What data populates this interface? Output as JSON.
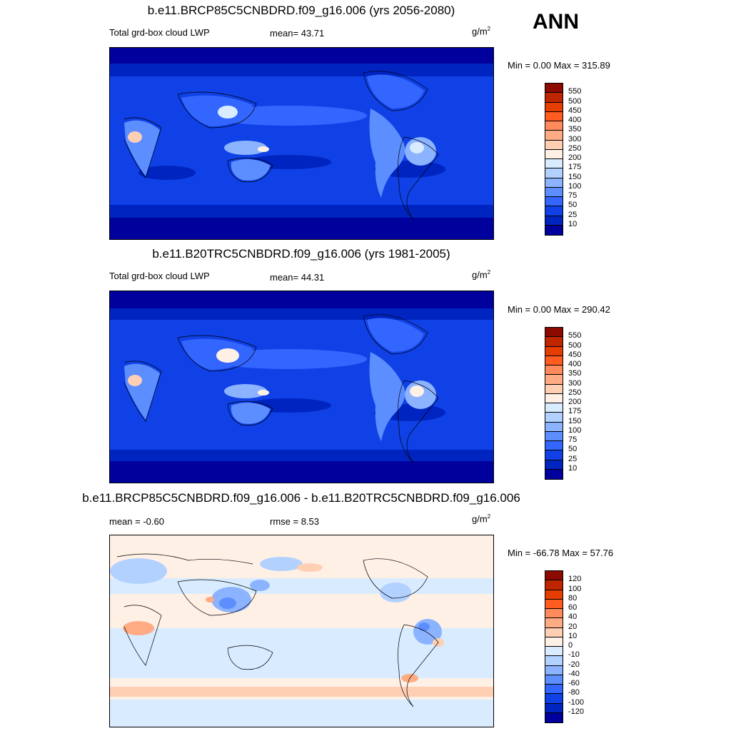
{
  "season": "ANN",
  "panels": [
    {
      "title": "b.e11.BRCP85C5CNBDRD.f09_g16.006 (yrs 2056-2080)",
      "left_label": "Total grd-box cloud LWP",
      "center_label": "mean=  43.71",
      "units_base": "g/m",
      "units_exp": "2",
      "minmax": "Min =   0.00 Max = 315.89",
      "colorbar": {
        "labels": [
          "550",
          "500",
          "450",
          "400",
          "350",
          "300",
          "250",
          "200",
          "175",
          "150",
          "100",
          "75",
          "50",
          "25",
          "10"
        ],
        "colors": [
          "#8c0a00",
          "#bf2600",
          "#e63d00",
          "#ff5c21",
          "#ff8a5c",
          "#ffac85",
          "#ffcfb3",
          "#fff0e6",
          "#d9ecff",
          "#b3d1ff",
          "#8cb3ff",
          "#5c8eff",
          "#3366ff",
          "#0f41e6",
          "#0024bf",
          "#00009c"
        ]
      }
    },
    {
      "title": "b.e11.B20TRC5CNBDRD.f09_g16.006 (yrs 1981-2005)",
      "left_label": "Total grd-box cloud LWP",
      "center_label": "mean=  44.31",
      "units_base": "g/m",
      "units_exp": "2",
      "minmax": "Min =   0.00 Max = 290.42",
      "colorbar": {
        "labels": [
          "550",
          "500",
          "450",
          "400",
          "350",
          "300",
          "250",
          "200",
          "175",
          "150",
          "100",
          "75",
          "50",
          "25",
          "10"
        ],
        "colors": [
          "#8c0a00",
          "#bf2600",
          "#e63d00",
          "#ff5c21",
          "#ff8a5c",
          "#ffac85",
          "#ffcfb3",
          "#fff0e6",
          "#d9ecff",
          "#b3d1ff",
          "#8cb3ff",
          "#5c8eff",
          "#3366ff",
          "#0f41e6",
          "#0024bf",
          "#00009c"
        ]
      }
    },
    {
      "title": "b.e11.BRCP85C5CNBDRD.f09_g16.006 - b.e11.B20TRC5CNBDRD.f09_g16.006",
      "left_label": "mean =  -0.60",
      "center_label": "rmse =   8.53",
      "units_base": "g/m",
      "units_exp": "2",
      "minmax": "Min = -66.78 Max =  57.76",
      "colorbar": {
        "labels": [
          "120",
          "100",
          "80",
          "60",
          "40",
          "20",
          "10",
          "0",
          "-10",
          "-20",
          "-40",
          "-60",
          "-80",
          "-100",
          "-120"
        ],
        "colors": [
          "#8c0a00",
          "#bf2600",
          "#e63d00",
          "#ff5c21",
          "#ff8a5c",
          "#ffac85",
          "#ffcfb3",
          "#fff0e6",
          "#d9ecff",
          "#b3d1ff",
          "#8cb3ff",
          "#5c8eff",
          "#3366ff",
          "#0f41e6",
          "#0024bf",
          "#00009c"
        ]
      }
    }
  ]
}
